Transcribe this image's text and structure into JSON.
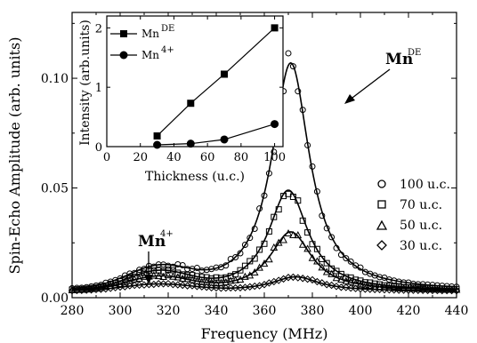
{
  "chart_data": [
    {
      "type": "scatter",
      "xlabel": "Frequency (MHz)",
      "ylabel": "Spin-Echo Amplitude (arb. units)",
      "xlim": [
        280,
        440
      ],
      "ylim": [
        0,
        0.13
      ],
      "xticks": [
        "280",
        "300",
        "320",
        "340",
        "360",
        "380",
        "400",
        "420",
        "440"
      ],
      "yticks": [
        "0.00",
        "0.05",
        "0.10"
      ],
      "legend": {
        "placement": "right",
        "entries": [
          {
            "label": "100 u.c.",
            "marker": "circle"
          },
          {
            "label": "70 u.c.",
            "marker": "square"
          },
          {
            "label": "50 u.c.",
            "marker": "triangle"
          },
          {
            "label": "30 u.c.",
            "marker": "diamond"
          }
        ]
      },
      "series": [
        {
          "name": "100 u.c.",
          "marker": "circle",
          "peak_x": 371,
          "peak_y": 0.104,
          "width": 9.5,
          "shoulder_x": 316,
          "shoulder_y": 0.009,
          "shoulder_width": 18
        },
        {
          "name": "70 u.c.",
          "marker": "square",
          "peak_x": 370,
          "peak_y": 0.046,
          "width": 10,
          "shoulder_x": 316,
          "shoulder_y": 0.008,
          "shoulder_width": 18
        },
        {
          "name": "50 u.c.",
          "marker": "triangle",
          "peak_x": 371,
          "peak_y": 0.027,
          "width": 10.5,
          "shoulder_x": 316,
          "shoulder_y": 0.006,
          "shoulder_width": 18
        },
        {
          "name": "30 u.c.",
          "marker": "diamond",
          "peak_x": 373,
          "peak_y": 0.0065,
          "width": 12,
          "shoulder_x": 316,
          "shoulder_y": 0.003,
          "shoulder_width": 20
        }
      ],
      "baseline": 0.003,
      "annotations": [
        {
          "text": "Mn",
          "superscript": "DE",
          "arrow_to_x": 372,
          "arrow_to_y": 0.104
        },
        {
          "text": "Mn",
          "superscript": "4+",
          "arrow_to_x": 313,
          "arrow_to_y": 0.011
        }
      ]
    },
    {
      "type": "line",
      "inset": true,
      "xlabel": "Thickness (u.c.)",
      "ylabel": "Intensity (arb.units)",
      "xlim": [
        0,
        105
      ],
      "ylim": [
        0,
        2.2
      ],
      "xticks": [
        "0",
        "20",
        "40",
        "60",
        "80",
        "100"
      ],
      "yticks": [
        "0",
        "1",
        "2"
      ],
      "x": [
        30,
        50,
        70,
        100
      ],
      "series": [
        {
          "name": "Mn",
          "superscript": "DE",
          "marker": "square",
          "values": [
            0.18,
            0.73,
            1.22,
            2.0
          ],
          "errors": [
            0.05,
            0.05,
            0.05,
            0.04
          ]
        },
        {
          "name": "Mn",
          "superscript": "4+",
          "marker": "circle",
          "values": [
            0.03,
            0.05,
            0.12,
            0.38
          ]
        }
      ],
      "legend": {
        "placement": "top-left"
      }
    }
  ]
}
